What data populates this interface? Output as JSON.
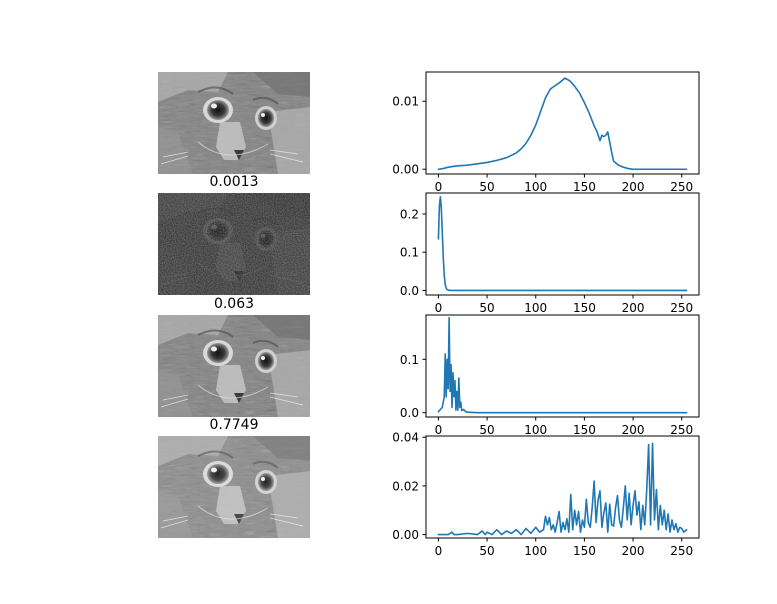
{
  "chart_data": [
    {
      "type": "line",
      "title": "",
      "xlabel": "",
      "ylabel": "",
      "xlim": [
        0,
        255
      ],
      "ylim": [
        -0.0007,
        0.0143
      ],
      "xticks": [
        0,
        50,
        100,
        150,
        200,
        250
      ],
      "xtick_labels": [
        "0",
        "50",
        "100",
        "150",
        "200",
        "250"
      ],
      "yticks": [
        0.0,
        0.01
      ],
      "ytick_labels": [
        "0.00",
        "0.01"
      ],
      "grid": false,
      "series": [
        {
          "color": "#1f77b4",
          "x": [
            0,
            5,
            10,
            20,
            30,
            40,
            50,
            60,
            70,
            80,
            85,
            90,
            95,
            100,
            105,
            110,
            115,
            120,
            125,
            130,
            135,
            140,
            145,
            150,
            155,
            160,
            163,
            166,
            168,
            170,
            172,
            174,
            176,
            178,
            180,
            185,
            190,
            195,
            200,
            210,
            220,
            230,
            240,
            250,
            255
          ],
          "y": [
            0.0,
            0.0001,
            0.0003,
            0.0005,
            0.0006,
            0.0008,
            0.001,
            0.0013,
            0.0017,
            0.0024,
            0.003,
            0.0038,
            0.005,
            0.0065,
            0.0085,
            0.0105,
            0.0118,
            0.0123,
            0.0128,
            0.0134,
            0.013,
            0.0122,
            0.0112,
            0.0098,
            0.0082,
            0.0064,
            0.0055,
            0.0042,
            0.005,
            0.0048,
            0.005,
            0.0055,
            0.004,
            0.0025,
            0.0012,
            0.0006,
            0.0003,
            0.0001,
            0.0,
            0.0,
            0.0,
            0.0,
            0.0,
            0.0,
            0.0
          ]
        }
      ]
    },
    {
      "type": "line",
      "title": "0.0013",
      "xlabel": "",
      "ylabel": "",
      "xlim": [
        0,
        255
      ],
      "ylim": [
        -0.012,
        0.255
      ],
      "xticks": [
        0,
        50,
        100,
        150,
        200,
        250
      ],
      "xtick_labels": [
        "0",
        "50",
        "100",
        "150",
        "200",
        "250"
      ],
      "yticks": [
        0.0,
        0.1,
        0.2
      ],
      "ytick_labels": [
        "0.0",
        "0.1",
        "0.2"
      ],
      "grid": false,
      "series": [
        {
          "color": "#1f77b4",
          "x": [
            0,
            1,
            2,
            3,
            4,
            5,
            6,
            7,
            8,
            9,
            10,
            12,
            15,
            20,
            30,
            50,
            100,
            150,
            200,
            255
          ],
          "y": [
            0.135,
            0.22,
            0.245,
            0.215,
            0.15,
            0.085,
            0.04,
            0.015,
            0.006,
            0.002,
            0.001,
            0.0003,
            0.0,
            0.0,
            0.0,
            0.0,
            0.0,
            0.0,
            0.0,
            0.0
          ]
        }
      ]
    },
    {
      "type": "line",
      "title": "0.063",
      "xlabel": "",
      "ylabel": "",
      "xlim": [
        0,
        255
      ],
      "ylim": [
        -0.008,
        0.183
      ],
      "xticks": [
        0,
        50,
        100,
        150,
        200,
        250
      ],
      "xtick_labels": [
        "0",
        "50",
        "100",
        "150",
        "200",
        "250"
      ],
      "yticks": [
        0.0,
        0.1
      ],
      "ytick_labels": [
        "0.0",
        "0.1"
      ],
      "grid": false,
      "series": [
        {
          "color": "#1f77b4",
          "x": [
            0,
            2,
            4,
            6,
            7,
            8,
            9,
            10,
            11,
            12,
            13,
            14,
            15,
            16,
            17,
            18,
            19,
            20,
            21,
            22,
            23,
            24,
            26,
            28,
            30,
            40,
            60,
            100,
            150,
            200,
            255
          ],
          "y": [
            0.002,
            0.006,
            0.01,
            0.03,
            0.11,
            0.03,
            0.1,
            0.045,
            0.178,
            0.04,
            0.09,
            0.01,
            0.075,
            0.03,
            0.06,
            0.005,
            0.04,
            0.005,
            0.065,
            0.01,
            0.02,
            0.004,
            0.006,
            0.002,
            0.001,
            0.0,
            0.0,
            0.0,
            0.0,
            0.0,
            0.0
          ]
        }
      ]
    },
    {
      "type": "line",
      "title": "0.7749",
      "xlabel": "",
      "ylabel": "",
      "xlim": [
        0,
        255
      ],
      "ylim": [
        -0.0014,
        0.0405
      ],
      "xticks": [
        0,
        50,
        100,
        150,
        200,
        250
      ],
      "xtick_labels": [
        "0",
        "50",
        "100",
        "150",
        "200",
        "250"
      ],
      "yticks": [
        0.0,
        0.02,
        0.04
      ],
      "ytick_labels": [
        "0.00",
        "0.02",
        "0.04"
      ],
      "grid": false,
      "series": [
        {
          "color": "#1f77b4",
          "x": [
            0,
            10,
            14,
            16,
            20,
            30,
            40,
            45,
            48,
            50,
            55,
            60,
            65,
            70,
            75,
            80,
            85,
            90,
            95,
            100,
            104,
            108,
            110,
            112,
            114,
            116,
            118,
            120,
            122,
            124,
            126,
            128,
            130,
            132,
            134,
            136,
            138,
            140,
            142,
            144,
            146,
            148,
            150,
            152,
            154,
            156,
            158,
            160,
            162,
            164,
            166,
            168,
            170,
            172,
            174,
            176,
            178,
            180,
            182,
            184,
            186,
            188,
            190,
            192,
            194,
            196,
            198,
            200,
            202,
            204,
            206,
            208,
            210,
            212,
            214,
            216,
            218,
            220,
            222,
            224,
            226,
            228,
            230,
            232,
            234,
            236,
            238,
            240,
            242,
            244,
            246,
            248,
            250,
            252,
            255
          ],
          "y": [
            0.0,
            0.0,
            0.001,
            0.0,
            0.0,
            0.0005,
            0.0,
            0.0015,
            0.0,
            0.001,
            0.0,
            0.002,
            0.0,
            0.0015,
            0.0005,
            0.002,
            0.0,
            0.0025,
            0.0005,
            0.003,
            0.001,
            0.002,
            0.0075,
            0.004,
            0.007,
            0.002,
            0.004,
            0.001,
            0.005,
            0.0095,
            0.001,
            0.005,
            0.002,
            0.0065,
            0.001,
            0.0165,
            0.002,
            0.01,
            0.004,
            0.0095,
            0.001,
            0.006,
            0.003,
            0.0145,
            0.005,
            0.003,
            0.011,
            0.022,
            0.005,
            0.014,
            0.018,
            0.003,
            0.009,
            0.013,
            0.001,
            0.0125,
            0.004,
            0.0035,
            0.011,
            0.016,
            0.006,
            0.003,
            0.011,
            0.02,
            0.006,
            0.017,
            0.004,
            0.012,
            0.018,
            0.008,
            0.0135,
            0.002,
            0.012,
            0.004,
            0.018,
            0.037,
            0.004,
            0.0375,
            0.006,
            0.0185,
            0.002,
            0.012,
            0.004,
            0.01,
            0.002,
            0.0085,
            0.001,
            0.006,
            0.002,
            0.0045,
            0.001,
            0.003,
            0.0025,
            0.001,
            0.002
          ]
        }
      ]
    }
  ],
  "images": [
    {
      "alt": "cat-image-original",
      "title": ""
    },
    {
      "alt": "cat-image-dark",
      "title": "0.0013"
    },
    {
      "alt": "cat-image-contrast",
      "title": "0.063"
    },
    {
      "alt": "cat-image-equalized",
      "title": "0.7749"
    }
  ]
}
